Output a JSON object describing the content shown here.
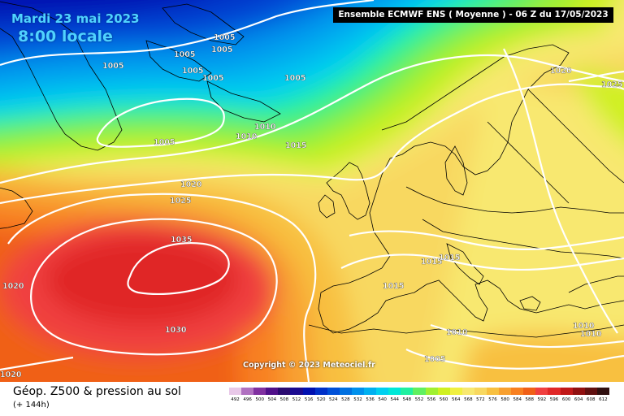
{
  "header": {
    "date": "Mardi 23 mai 2023",
    "time": "8:00 locale"
  },
  "model": {
    "label": "Ensemble ECMWF ENS  ( Moyenne )  -  06 Z du 17/05/2023"
  },
  "copyright": "Copyright © 2023 Meteociel.fr",
  "footer": {
    "title": "Géop. Z500 & pression au sol",
    "subtitle": "(+ 144h)"
  },
  "legend": {
    "ticks": [
      "492",
      "496",
      "500",
      "504",
      "508",
      "512",
      "516",
      "520",
      "524",
      "528",
      "532",
      "536",
      "540",
      "544",
      "548",
      "552",
      "556",
      "560",
      "564",
      "568",
      "572",
      "576",
      "580",
      "584",
      "588",
      "592",
      "596",
      "600",
      "604",
      "608",
      "612"
    ],
    "colors": [
      "#e8c8e8",
      "#b070c0",
      "#8030a0",
      "#50108a",
      "#2a0a70",
      "#1a0a90",
      "#0010b0",
      "#0030c8",
      "#0050d8",
      "#0070e0",
      "#0090ec",
      "#00b0f0",
      "#00d0f0",
      "#00e8d8",
      "#20f0a0",
      "#60f060",
      "#a0f030",
      "#d0f020",
      "#f0f040",
      "#f8e870",
      "#f8d860",
      "#f8c040",
      "#f8a030",
      "#f88020",
      "#f06018",
      "#f04040",
      "#e02828",
      "#c01818",
      "#901010",
      "#601010",
      "#301010"
    ]
  },
  "isobars": [
    {
      "value": "1005"
    },
    {
      "value": "1005"
    },
    {
      "value": "1005"
    },
    {
      "value": "1005"
    },
    {
      "value": "1005"
    },
    {
      "value": "1005"
    },
    {
      "value": "1005"
    },
    {
      "value": "1005"
    },
    {
      "value": "1010"
    },
    {
      "value": "1010"
    },
    {
      "value": "1015"
    },
    {
      "value": "1020"
    },
    {
      "value": "1025"
    },
    {
      "value": "1035"
    },
    {
      "value": "1030"
    },
    {
      "value": "1020"
    },
    {
      "value": "1020"
    },
    {
      "value": "1015"
    },
    {
      "value": "1015"
    },
    {
      "value": "1015"
    },
    {
      "value": "1010"
    },
    {
      "value": "1010"
    },
    {
      "value": "1010"
    },
    {
      "value": "1005"
    },
    {
      "value": "1020"
    },
    {
      "value": "1025"
    }
  ],
  "colors": {
    "isobar": "#ffffff",
    "coast": "#000000"
  }
}
